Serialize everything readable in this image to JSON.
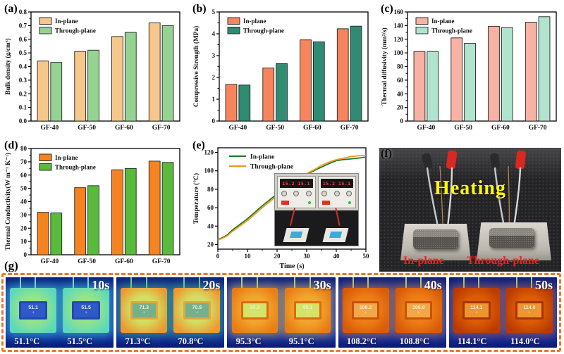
{
  "figure": {
    "background": "#ffffff"
  },
  "chart_data": [
    {
      "panel_label": "(a)",
      "type": "bar",
      "categories": [
        "GF-40",
        "GF-50",
        "GF-60",
        "GF-70"
      ],
      "series": [
        {
          "name": "In-plane",
          "color": "#F6C78A",
          "values": [
            0.44,
            0.51,
            0.62,
            0.72
          ]
        },
        {
          "name": "Through-plane",
          "color": "#95D393",
          "values": [
            0.43,
            0.52,
            0.65,
            0.7
          ]
        }
      ],
      "xlabel": "",
      "ylabel": "Bulk density (g/cm³)",
      "ylim": [
        0,
        0.8
      ],
      "ytick": 0.1,
      "ydec": 1,
      "legend_position": "top-left",
      "grid": false
    },
    {
      "panel_label": "(b)",
      "type": "bar",
      "categories": [
        "GF-40",
        "GF-50",
        "GF-60",
        "GF-70"
      ],
      "series": [
        {
          "name": "In-plane",
          "color": "#F6855E",
          "values": [
            1.68,
            2.43,
            3.72,
            4.23
          ]
        },
        {
          "name": "Through-plane",
          "color": "#2F8C72",
          "values": [
            1.65,
            2.63,
            3.63,
            4.35
          ]
        }
      ],
      "xlabel": "",
      "ylabel": "Compressive Strength (MPa)",
      "ylim": [
        0,
        5
      ],
      "ytick": 1,
      "ydec": 0,
      "legend_position": "top-left",
      "grid": false
    },
    {
      "panel_label": "(c)",
      "type": "bar",
      "categories": [
        "GF-40",
        "GF-50",
        "GF-60",
        "GF-70"
      ],
      "series": [
        {
          "name": "In-plane",
          "color": "#F8B2A3",
          "values": [
            102,
            122,
            139,
            145
          ]
        },
        {
          "name": "Through-plane",
          "color": "#B0E4CF",
          "values": [
            102,
            114,
            137,
            153
          ]
        }
      ],
      "xlabel": "",
      "ylabel": "Thermal diffusivity (mm²/s)",
      "ylim": [
        0,
        160
      ],
      "ytick": 20,
      "ydec": 0,
      "legend_position": "top-left",
      "grid": false
    },
    {
      "panel_label": "(d)",
      "type": "bar",
      "categories": [
        "GF-40",
        "GF-50",
        "GF-60",
        "GF-70"
      ],
      "series": [
        {
          "name": "In-plane",
          "color": "#F58420",
          "values": [
            32,
            50.5,
            64,
            70.5
          ]
        },
        {
          "name": "Through-plane",
          "color": "#5ABA3C",
          "values": [
            31.5,
            52,
            65,
            69.5
          ]
        }
      ],
      "xlabel": "",
      "ylabel": "Thermal Conductivity(W m⁻¹ K⁻¹)",
      "ylim": [
        0,
        80
      ],
      "ytick": 10,
      "ydec": 0,
      "legend_position": "top-left",
      "grid": false
    },
    {
      "panel_label": "(e)",
      "type": "line",
      "series": [
        {
          "name": "In-plane",
          "color": "#1E7B1E",
          "points": [
            [
              0,
              25
            ],
            [
              3,
              30
            ],
            [
              5,
              36
            ],
            [
              10,
              48
            ],
            [
              15,
              62
            ],
            [
              20,
              75
            ],
            [
              23,
              81
            ],
            [
              25,
              85
            ],
            [
              28,
              91
            ],
            [
              30,
              96
            ],
            [
              33,
              101
            ],
            [
              35,
              104
            ],
            [
              37,
              107
            ],
            [
              40,
              111
            ],
            [
              42,
              112
            ],
            [
              45,
              113
            ],
            [
              48,
              114
            ],
            [
              50,
              115
            ]
          ]
        },
        {
          "name": "Through-plane",
          "color": "#F59422",
          "points": [
            [
              0,
              24.5
            ],
            [
              3,
              29
            ],
            [
              5,
              34.5
            ],
            [
              10,
              46
            ],
            [
              15,
              60
            ],
            [
              20,
              73
            ],
            [
              23,
              79.5
            ],
            [
              25,
              85
            ],
            [
              28,
              92
            ],
            [
              30,
              97
            ],
            [
              33,
              102
            ],
            [
              35,
              106
            ],
            [
              38,
              110
            ],
            [
              40,
              112
            ],
            [
              45,
              115.5
            ],
            [
              50,
              117
            ]
          ]
        }
      ],
      "xlabel": "Time (s)",
      "ylabel": "Temperature (°C)",
      "xlim": [
        0,
        50
      ],
      "ylim": [
        15,
        125
      ],
      "xticks": [
        0,
        10,
        20,
        30,
        40,
        50
      ],
      "yticks": [
        20,
        40,
        60,
        80,
        100,
        120
      ],
      "legend_position": "top-left",
      "grid": false
    }
  ],
  "panel_e_inset": {
    "psu_display_left": "15.2  15.1",
    "psu_display_right": "15.2  15.1"
  },
  "panel_f": {
    "label": "(f)",
    "heating_text": "Heating",
    "left_label": "In-plane",
    "right_label": "Through-plane",
    "colors": {
      "heating_text": "#FDFD00",
      "sample_labels": "#F51F1F",
      "background": "#232325",
      "plate": "#C9C5BD"
    }
  },
  "panel_g": {
    "label": "(g)",
    "border_color": "#E8762C",
    "frames": [
      {
        "time": "10s",
        "left_reading": "51.1",
        "right_reading": "51.5",
        "left_temp": "51.1°C",
        "right_temp": "51.5°C",
        "colors": {
          "bg": "#0D2EB0",
          "bg2": "#081C74",
          "halo": "rgba(80,225,205,0.55)",
          "plate_in": "#93E48A",
          "plate_edge": "#5CD8BC",
          "well": "#2448B0",
          "sample": "#2E58CC",
          "wire": "#9ADCF2"
        }
      },
      {
        "time": "20s",
        "left_reading": "71.3",
        "right_reading": "70.8",
        "left_temp": "71.3°C",
        "right_temp": "70.8°C",
        "colors": {
          "bg": "#0D2EB0",
          "bg2": "#081C74",
          "halo": "rgba(90,200,110,0.55)",
          "plate_in": "#D3DF62",
          "plate_edge": "#EE9830",
          "well": "#DCA93E",
          "sample": "#74B08C",
          "wire": "#7ED8A8"
        }
      },
      {
        "time": "30s",
        "left_reading": "95.3",
        "right_reading": "95.1",
        "left_temp": "95.3°C",
        "right_temp": "95.1°C",
        "colors": {
          "bg": "#0D2EB0",
          "bg2": "#081C74",
          "halo": "rgba(240,190,70,0.6)",
          "plate_in": "#F2A62E",
          "plate_edge": "#E87C14",
          "well": "#D96C10",
          "sample": "#D4E468",
          "wire": "#A8E488"
        }
      },
      {
        "time": "40s",
        "left_reading": "108.2",
        "right_reading": "108.8",
        "left_temp": "108.2°C",
        "right_temp": "108.8°C",
        "colors": {
          "bg": "#0D2EB0",
          "bg2": "#081C74",
          "halo": "rgba(240,140,40,0.55)",
          "plate_in": "#EE7E18",
          "plate_edge": "#D85A06",
          "well": "#C85208",
          "sample": "#F2A844",
          "wire": "#A8E488"
        }
      },
      {
        "time": "50s",
        "left_reading": "114.1",
        "right_reading": "114.0",
        "left_temp": "114.1°C",
        "right_temp": "114.0°C",
        "colors": {
          "bg": "#0D2EB0",
          "bg2": "#081C74",
          "halo": "rgba(230,110,30,0.5)",
          "plate_in": "#DC5C06",
          "plate_edge": "#B93A00",
          "well": "#A83400",
          "sample": "#EE9530",
          "wire": "#A8E488"
        }
      }
    ]
  }
}
